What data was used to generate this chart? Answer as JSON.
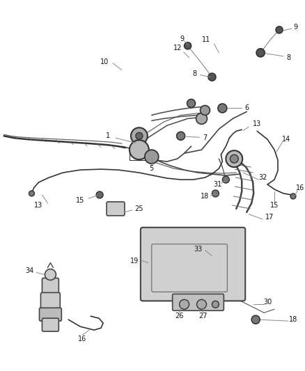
{
  "bg_color": "#ffffff",
  "line_color": "#444444",
  "label_color": "#111111",
  "figsize": [
    4.38,
    5.33
  ],
  "dpi": 100,
  "xlim": [
    0,
    438
  ],
  "ylim": [
    0,
    533
  ]
}
